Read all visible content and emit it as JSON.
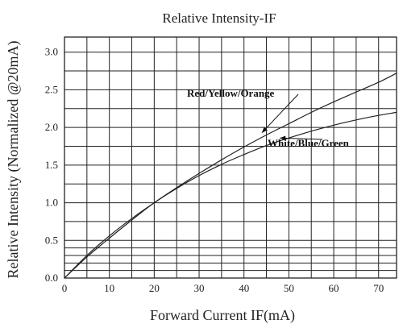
{
  "chart_data": {
    "type": "line",
    "title": "Relative Intensity-IF",
    "xlabel": "Forward Current IF(mA)",
    "ylabel": "Relative Intensity (Normalized @20mA)",
    "xlim": [
      0,
      74
    ],
    "ylim": [
      0,
      3.2
    ],
    "x_ticks": [
      0,
      10,
      20,
      30,
      40,
      50,
      60,
      70
    ],
    "x_tick_labels": [
      "0",
      "10",
      "20",
      "30",
      "40",
      "50",
      "60",
      "70"
    ],
    "y_ticks": [
      0.0,
      0.5,
      1.0,
      1.5,
      2.0,
      2.5,
      3.0
    ],
    "y_tick_labels": [
      "0.0",
      "0.5",
      "1.0",
      "1.5",
      "2.0",
      "2.5",
      "3.0"
    ],
    "grid": true,
    "series": [
      {
        "name": "Red/Yellow/Orange",
        "x": [
          0,
          5,
          10,
          15,
          20,
          25,
          30,
          35,
          40,
          45,
          50,
          55,
          60,
          65,
          70,
          74
        ],
        "y": [
          0,
          0.3,
          0.56,
          0.79,
          1.0,
          1.2,
          1.39,
          1.57,
          1.74,
          1.9,
          2.05,
          2.2,
          2.34,
          2.47,
          2.6,
          2.72
        ]
      },
      {
        "name": "White/Blue/Green",
        "x": [
          0,
          5,
          10,
          15,
          20,
          25,
          30,
          35,
          40,
          45,
          50,
          55,
          60,
          65,
          70,
          74
        ],
        "y": [
          0,
          0.28,
          0.53,
          0.77,
          1.0,
          1.19,
          1.36,
          1.51,
          1.64,
          1.76,
          1.86,
          1.95,
          2.03,
          2.1,
          2.16,
          2.2
        ]
      }
    ],
    "annotations": [
      {
        "text": "Red/Yellow/Orange",
        "series": 0,
        "arrow_to": {
          "x": 44,
          "y": 1.93
        }
      },
      {
        "text": "White/Blue/Green",
        "series": 1,
        "arrow_to": {
          "x": 48,
          "y": 1.86
        }
      }
    ]
  }
}
